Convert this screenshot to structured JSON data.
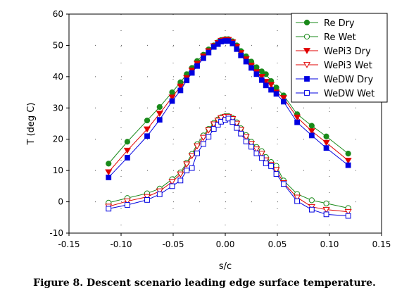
{
  "caption": "Figure 8.  Descent scenario leading edge surface temperature.",
  "chart_data": {
    "type": "scatter",
    "xlabel": "s/c",
    "ylabel": "T (deg C)",
    "xlim": [
      -0.15,
      0.15
    ],
    "ylim": [
      -10,
      60
    ],
    "xticks": [
      "-0.15",
      "-0.10",
      "-0.05",
      "0.00",
      "0.05",
      "0.10",
      "0.15"
    ],
    "yticks": [
      "-10",
      "0",
      "10",
      "20",
      "30",
      "40",
      "50",
      "60"
    ],
    "grid": "dotted",
    "legend_position": "top-right",
    "x": [
      -0.112,
      -0.094,
      -0.075,
      -0.063,
      -0.051,
      -0.043,
      -0.037,
      -0.032,
      -0.027,
      -0.021,
      -0.016,
      -0.011,
      -0.007,
      -0.004,
      0.0,
      0.003,
      0.007,
      0.011,
      0.015,
      0.02,
      0.025,
      0.03,
      0.035,
      0.039,
      0.044,
      0.049,
      0.056,
      0.069,
      0.083,
      0.097,
      0.118
    ],
    "series": [
      {
        "name": "Re Dry",
        "color": "#1a8a1a",
        "marker": "circle",
        "filled": true,
        "values": [
          12.2,
          19.2,
          26.0,
          30.3,
          35.0,
          38.2,
          40.8,
          42.8,
          45.0,
          47.0,
          48.7,
          50.0,
          51.0,
          51.7,
          52.0,
          52.0,
          51.3,
          50.0,
          48.2,
          46.5,
          44.8,
          43.0,
          41.7,
          40.8,
          38.6,
          36.5,
          34.0,
          28.0,
          24.3,
          20.9,
          15.4
        ]
      },
      {
        "name": "Re Wet",
        "color": "#1a8a1a",
        "marker": "circle",
        "filled": false,
        "values": [
          -0.3,
          1.2,
          2.7,
          4.2,
          7.2,
          9.4,
          12.5,
          15.3,
          18.4,
          21.2,
          23.3,
          25.2,
          26.3,
          27.0,
          27.4,
          27.4,
          26.8,
          25.4,
          23.5,
          21.3,
          19.2,
          17.5,
          16.2,
          14.3,
          12.7,
          11.5,
          6.8,
          2.5,
          0.5,
          -0.5,
          -2.0
        ]
      },
      {
        "name": "WePi3 Dry",
        "color": "#e00000",
        "marker": "triangle-down",
        "filled": true,
        "values": [
          9.5,
          16.4,
          23.2,
          28.2,
          33.4,
          36.9,
          39.6,
          42.0,
          44.2,
          46.5,
          48.2,
          49.8,
          50.8,
          51.5,
          51.8,
          51.8,
          51.0,
          49.6,
          47.6,
          45.6,
          43.6,
          41.5,
          40.0,
          38.4,
          37.4,
          35.0,
          33.2,
          27.0,
          22.6,
          18.9,
          13.2
        ]
      },
      {
        "name": "WePi3 Wet",
        "color": "#e00000",
        "marker": "triangle-down",
        "filled": false,
        "values": [
          -1.5,
          0.2,
          1.6,
          3.4,
          6.4,
          8.8,
          12.0,
          14.7,
          17.8,
          20.5,
          22.9,
          24.8,
          26.0,
          26.8,
          27.2,
          27.2,
          26.5,
          25.0,
          23.0,
          20.7,
          18.6,
          16.8,
          15.4,
          13.3,
          11.9,
          10.2,
          6.0,
          1.4,
          -1.6,
          -2.5,
          -3.2
        ]
      },
      {
        "name": "WeDW Dry",
        "color": "#0000e0",
        "marker": "square",
        "filled": true,
        "values": [
          7.8,
          14.1,
          21.0,
          26.2,
          32.2,
          35.6,
          38.8,
          41.2,
          43.4,
          45.9,
          47.7,
          49.5,
          50.4,
          51.2,
          51.4,
          51.4,
          50.6,
          48.8,
          46.8,
          44.8,
          42.8,
          40.8,
          38.9,
          37.2,
          35.8,
          34.5,
          32.0,
          25.4,
          21.2,
          17.2,
          11.7
        ]
      },
      {
        "name": "WeDW Wet",
        "color": "#0000e0",
        "marker": "square",
        "filled": false,
        "values": [
          -2.2,
          -1.0,
          0.6,
          2.4,
          5.0,
          6.8,
          10.0,
          10.8,
          15.5,
          18.5,
          20.8,
          23.3,
          24.6,
          25.6,
          26.2,
          26.6,
          25.5,
          23.6,
          21.8,
          19.3,
          17.6,
          15.5,
          14.0,
          12.3,
          11.4,
          8.9,
          5.7,
          0.2,
          -2.5,
          -4.0,
          -4.5
        ]
      }
    ]
  }
}
